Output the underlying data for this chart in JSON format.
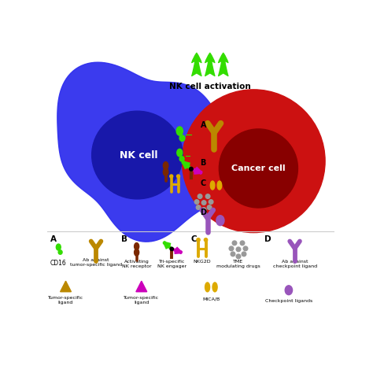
{
  "bg_color": "#ffffff",
  "nk_outer": "#3030ee",
  "nk_inner": "#1818aa",
  "cancer_outer": "#cc1111",
  "cancer_inner": "#880000",
  "green": "#33dd00",
  "gold": "#bb8800",
  "brown": "#7a2800",
  "magenta": "#cc00bb",
  "yellow": "#ddaa00",
  "gray": "#999999",
  "purple": "#9955bb",
  "black": "#000000",
  "white": "#ffffff",
  "nk_label": "NK cell",
  "cancer_label": "Cancer cell",
  "activation_label": "NK cell activation"
}
